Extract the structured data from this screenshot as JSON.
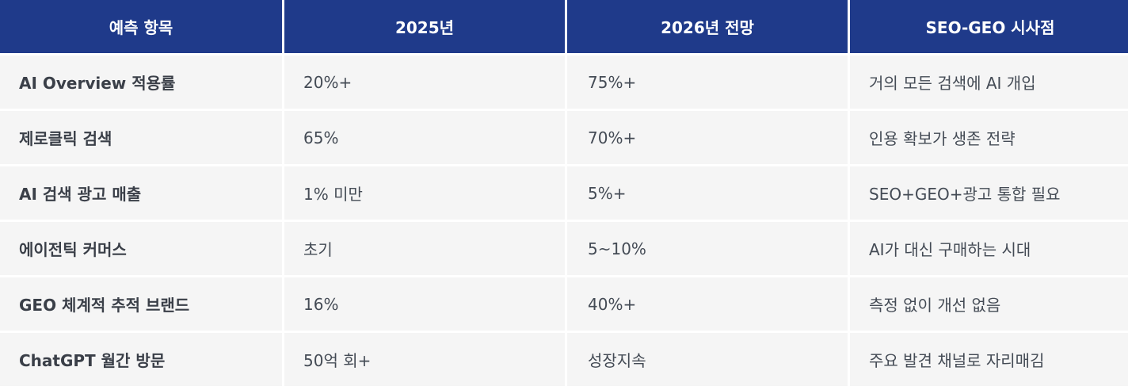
{
  "colors": {
    "header_bg": "#1f3a8a",
    "header_text": "#ffffff",
    "cell_bg": "#f5f5f5",
    "cell_text": "#444b55"
  },
  "table": {
    "headers": [
      "예측 항목",
      "2025년",
      "2026년 전망",
      "SEO-GEO 시사점"
    ],
    "rows": [
      [
        "AI Overview 적용률",
        "20%+",
        "75%+",
        "거의 모든 검색에 AI 개입"
      ],
      [
        "제로클릭 검색",
        "65%",
        "70%+",
        "인용 확보가 생존 전략"
      ],
      [
        "AI 검색 광고 매출",
        "1% 미만",
        "5%+",
        "SEO+GEO+광고 통합 필요"
      ],
      [
        "에이전틱 커머스",
        "초기",
        "5~10%",
        "AI가 대신 구매하는 시대"
      ],
      [
        "GEO 체계적 추적 브랜드",
        "16%",
        "40%+",
        "측정 없이 개선 없음"
      ],
      [
        "ChatGPT 월간 방문",
        "50억 회+",
        "성장지속",
        "주요 발견 채널로 자리매김"
      ]
    ]
  }
}
